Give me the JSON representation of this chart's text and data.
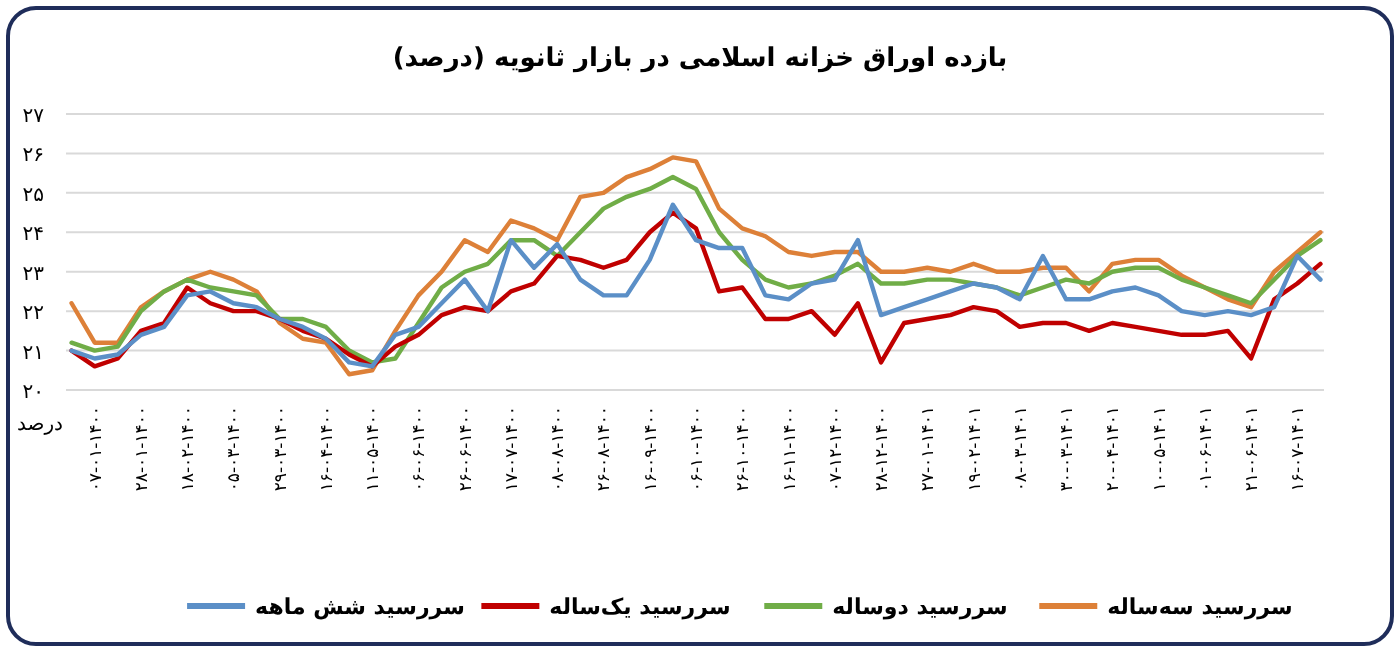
{
  "chart_data": {
    "type": "line",
    "title": "بازده اوراق خزانه اسلامی در بازار ثانویه (درصد)",
    "ylabel": "درصد",
    "categories": [
      null,
      "۰۷-۰۱-۱۴۰۰",
      null,
      "۲۸-۰۱-۱۴۰۰",
      null,
      "۱۸-۰۲-۱۴۰۰",
      null,
      "۰۵-۰۳-۱۴۰۰",
      null,
      "۲۹-۰۳-۱۴۰۰",
      null,
      "۱۶-۰۴-۱۴۰۰",
      null,
      "۱۱-۰۵-۱۴۰۰",
      null,
      "۰۶-۰۶-۱۴۰۰",
      null,
      "۲۶-۰۶-۱۴۰۰",
      null,
      "۱۷-۰۷-۱۴۰۰",
      null,
      "۰۸-۰۸-۱۴۰۰",
      null,
      "۲۶-۰۸-۱۴۰۰",
      null,
      "۱۶-۰۹-۱۴۰۰",
      null,
      "۰۶-۱۰-۱۴۰۰",
      null,
      "۲۶-۱۰-۱۴۰۰",
      null,
      "۱۶-۱۱-۱۴۰۰",
      null,
      "۰۷-۱۲-۱۴۰۰",
      null,
      "۲۸-۱۲-۱۴۰۰",
      null,
      "۲۷-۰۱-۱۴۰۱",
      null,
      "۱۹-۰۲-۱۴۰۱",
      null,
      "۰۸-۰۳-۱۴۰۱",
      null,
      "۳۰-۰۳-۱۴۰۱",
      null,
      "۲۰-۰۴-۱۴۰۱",
      null,
      "۱۰-۰۵-۱۴۰۱",
      null,
      "۰۱-۰۶-۱۴۰۱",
      null,
      "۲۱-۰۶-۱۴۰۱",
      null,
      "۱۶-۰۷-۱۴۰۱",
      null
    ],
    "ylim": [
      20,
      27
    ],
    "yticks": [
      {
        "value": 20,
        "label": "۲۰"
      },
      {
        "value": 21,
        "label": "۲۱"
      },
      {
        "value": 22,
        "label": "۲۲"
      },
      {
        "value": 23,
        "label": "۲۳"
      },
      {
        "value": 24,
        "label": "۲۴"
      },
      {
        "value": 25,
        "label": "۲۵"
      },
      {
        "value": 26,
        "label": "۲۶"
      },
      {
        "value": 27,
        "label": "۲۷"
      }
    ],
    "grid": "y",
    "legend": "bottom",
    "series": [
      {
        "name": "سررسید سه‌ساله",
        "color": "#dd8038",
        "values": [
          22.2,
          21.2,
          21.2,
          22.1,
          22.5,
          22.8,
          23.0,
          22.8,
          22.5,
          21.7,
          21.3,
          21.2,
          20.4,
          20.5,
          21.5,
          22.4,
          23.0,
          23.8,
          23.5,
          24.3,
          24.1,
          23.8,
          24.9,
          25.0,
          25.4,
          25.6,
          25.9,
          25.8,
          24.6,
          24.1,
          23.9,
          23.5,
          23.4,
          23.5,
          23.5,
          23.0,
          23.0,
          23.1,
          23.0,
          23.2,
          23.0,
          23.0,
          23.1,
          23.1,
          22.5,
          23.2,
          23.3,
          23.3,
          22.9,
          22.6,
          22.3,
          22.1,
          23.0,
          23.5,
          24.0
        ]
      },
      {
        "name": "سررسید دوساله",
        "color": "#70ad47",
        "values": [
          21.2,
          21.0,
          21.1,
          22.0,
          22.5,
          22.8,
          22.6,
          22.5,
          22.4,
          21.8,
          21.8,
          21.6,
          21.0,
          20.7,
          20.8,
          21.7,
          22.6,
          23.0,
          23.2,
          23.8,
          23.8,
          23.4,
          24.0,
          24.6,
          24.9,
          25.1,
          25.4,
          25.1,
          24.0,
          23.3,
          22.8,
          22.6,
          22.7,
          22.9,
          23.2,
          22.7,
          22.7,
          22.8,
          22.8,
          22.7,
          22.6,
          22.4,
          22.6,
          22.8,
          22.7,
          23.0,
          23.1,
          23.1,
          22.8,
          22.6,
          22.4,
          22.2,
          22.8,
          23.4,
          23.8
        ]
      },
      {
        "name": "سررسید یک‌ساله",
        "color": "#c00000",
        "values": [
          21.0,
          20.6,
          20.8,
          21.5,
          21.7,
          22.6,
          22.2,
          22.0,
          22.0,
          21.8,
          21.5,
          21.3,
          20.9,
          20.6,
          21.1,
          21.4,
          21.9,
          22.1,
          22.0,
          22.5,
          22.7,
          23.4,
          23.3,
          23.1,
          23.3,
          24.0,
          24.5,
          24.1,
          22.5,
          22.6,
          21.8,
          21.8,
          22.0,
          21.4,
          22.2,
          20.7,
          21.7,
          21.8,
          21.9,
          22.1,
          22.0,
          21.6,
          21.7,
          21.7,
          21.5,
          21.7,
          21.6,
          21.5,
          21.4,
          21.4,
          21.5,
          20.8,
          22.3,
          22.7,
          23.2
        ]
      },
      {
        "name": "سررسید شش ماهه",
        "color": "#5b8fc7",
        "values": [
          21.0,
          20.8,
          20.9,
          21.4,
          21.6,
          22.4,
          22.5,
          22.2,
          22.1,
          21.8,
          21.6,
          21.3,
          20.7,
          20.6,
          21.4,
          21.6,
          22.2,
          22.8,
          22.0,
          23.8,
          23.1,
          23.7,
          22.8,
          22.4,
          22.4,
          23.3,
          24.7,
          23.8,
          23.6,
          23.6,
          22.4,
          22.3,
          22.7,
          22.8,
          23.8,
          21.9,
          22.1,
          22.3,
          22.5,
          22.7,
          22.6,
          22.3,
          23.4,
          22.3,
          22.3,
          22.5,
          22.6,
          22.4,
          22.0,
          21.9,
          22.0,
          21.9,
          22.1,
          23.4,
          22.8
        ]
      }
    ]
  }
}
